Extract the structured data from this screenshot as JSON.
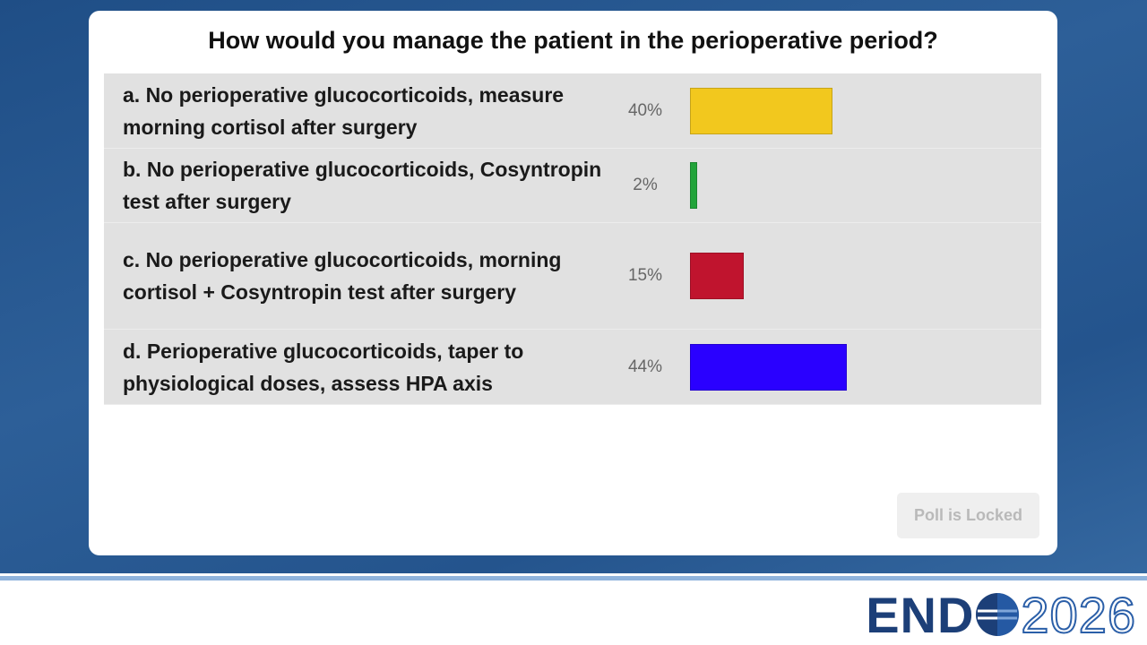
{
  "chart_data": {
    "type": "bar",
    "title": "How would you manage the patient in the perioperative period?",
    "categories": [
      "a. No perioperative glucocorticoids, measure morning cortisol after surgery",
      "b. No perioperative glucocorticoids, Cosyntropin test after surgery",
      "c. No perioperative glucocorticoids, morning cortisol + Cosyntropin test after surgery",
      "d. Perioperative glucocorticoids, taper to physiological doses, assess HPA axis"
    ],
    "values": [
      40,
      2,
      15,
      44
    ],
    "value_labels": [
      "40%",
      "2%",
      "15%",
      "44%"
    ],
    "colors": [
      "#f2c81e",
      "#22a33a",
      "#c0142e",
      "#2a00ff"
    ]
  },
  "button": "Poll is Locked",
  "logo": {
    "brand": "END",
    "year": "2026"
  }
}
